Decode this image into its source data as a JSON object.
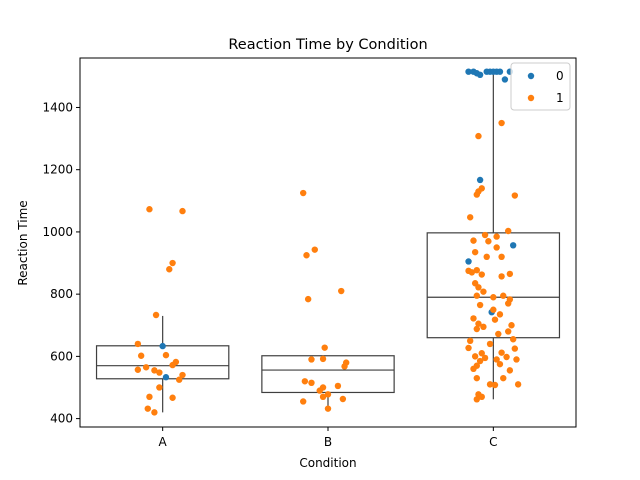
{
  "chart_data": {
    "type": "scatter",
    "title": "Reaction Time by Condition",
    "xlabel": "Condition",
    "ylabel": "Reaction Time",
    "categories": [
      "A",
      "B",
      "C"
    ],
    "ylim": [
      373,
      1559
    ],
    "yticks": [
      400,
      600,
      800,
      1000,
      1200,
      1400
    ],
    "grid": false,
    "legend_position": "top-right",
    "boxes": [
      {
        "category": "A",
        "q1": 528,
        "median": 570,
        "q3": 634,
        "whisker_low": 420,
        "whisker_high": 730
      },
      {
        "category": "B",
        "q1": 484,
        "median": 556,
        "q3": 602,
        "whisker_low": 432,
        "whisker_high": 602
      },
      {
        "category": "C",
        "q1": 660,
        "median": 790,
        "q3": 997,
        "whisker_low": 462,
        "whisker_high": 1515
      }
    ],
    "series": [
      {
        "name": "0",
        "color": "#1f77b4",
        "points": [
          [
            "A",
            0.0,
            633
          ],
          [
            "A",
            0.02,
            533
          ],
          [
            "C",
            -0.15,
            1515
          ],
          [
            "C",
            -0.12,
            1515
          ],
          [
            "C",
            -0.1,
            1510
          ],
          [
            "C",
            -0.08,
            1505
          ],
          [
            "C",
            -0.04,
            1515
          ],
          [
            "C",
            -0.02,
            1515
          ],
          [
            "C",
            0.0,
            1515
          ],
          [
            "C",
            0.02,
            1515
          ],
          [
            "C",
            0.04,
            1515
          ],
          [
            "C",
            0.07,
            1490
          ],
          [
            "C",
            0.1,
            1515
          ],
          [
            "C",
            -0.08,
            1167
          ],
          [
            "C",
            0.12,
            957
          ],
          [
            "C",
            -0.15,
            905
          ],
          [
            "C",
            -0.01,
            742
          ]
        ]
      },
      {
        "name": "1",
        "color": "#ff7f0e",
        "points": [
          [
            "A",
            -0.08,
            1073
          ],
          [
            "A",
            0.12,
            1067
          ],
          [
            "A",
            0.06,
            900
          ],
          [
            "A",
            0.04,
            880
          ],
          [
            "A",
            -0.04,
            733
          ],
          [
            "A",
            -0.15,
            640
          ],
          [
            "A",
            -0.13,
            602
          ],
          [
            "A",
            0.02,
            604
          ],
          [
            "A",
            0.08,
            582
          ],
          [
            "A",
            0.06,
            572
          ],
          [
            "A",
            -0.1,
            565
          ],
          [
            "A",
            -0.05,
            555
          ],
          [
            "A",
            -0.15,
            557
          ],
          [
            "A",
            0.12,
            540
          ],
          [
            "A",
            -0.02,
            548
          ],
          [
            "A",
            0.1,
            525
          ],
          [
            "A",
            -0.02,
            500
          ],
          [
            "A",
            -0.08,
            470
          ],
          [
            "A",
            0.06,
            467
          ],
          [
            "A",
            -0.09,
            432
          ],
          [
            "A",
            -0.05,
            420
          ],
          [
            "B",
            -0.15,
            1125
          ],
          [
            "B",
            -0.08,
            943
          ],
          [
            "B",
            -0.13,
            925
          ],
          [
            "B",
            0.08,
            810
          ],
          [
            "B",
            -0.12,
            784
          ],
          [
            "B",
            -0.02,
            628
          ],
          [
            "B",
            -0.1,
            590
          ],
          [
            "B",
            -0.03,
            592
          ],
          [
            "B",
            0.11,
            580
          ],
          [
            "B",
            0.1,
            568
          ],
          [
            "B",
            -0.14,
            520
          ],
          [
            "B",
            -0.1,
            515
          ],
          [
            "B",
            0.06,
            505
          ],
          [
            "B",
            -0.03,
            500
          ],
          [
            "B",
            -0.05,
            490
          ],
          [
            "B",
            0.0,
            478
          ],
          [
            "B",
            -0.03,
            470
          ],
          [
            "B",
            0.09,
            463
          ],
          [
            "B",
            -0.15,
            455
          ],
          [
            "B",
            0.0,
            432
          ],
          [
            "C",
            0.05,
            1350
          ],
          [
            "C",
            -0.09,
            1308
          ],
          [
            "C",
            -0.07,
            1140
          ],
          [
            "C",
            -0.1,
            1120
          ],
          [
            "C",
            0.13,
            1117
          ],
          [
            "C",
            -0.09,
            1130
          ],
          [
            "C",
            -0.14,
            1047
          ],
          [
            "C",
            -0.05,
            990
          ],
          [
            "C",
            0.09,
            1003
          ],
          [
            "C",
            -0.12,
            972
          ],
          [
            "C",
            0.02,
            985
          ],
          [
            "C",
            -0.03,
            970
          ],
          [
            "C",
            -0.11,
            935
          ],
          [
            "C",
            0.02,
            950
          ],
          [
            "C",
            -0.04,
            920
          ],
          [
            "C",
            0.05,
            920
          ],
          [
            "C",
            -0.15,
            875
          ],
          [
            "C",
            -0.13,
            870
          ],
          [
            "C",
            -0.1,
            877
          ],
          [
            "C",
            -0.07,
            863
          ],
          [
            "C",
            0.05,
            857
          ],
          [
            "C",
            0.1,
            865
          ],
          [
            "C",
            -0.11,
            835
          ],
          [
            "C",
            -0.09,
            822
          ],
          [
            "C",
            -0.06,
            808
          ],
          [
            "C",
            -0.1,
            795
          ],
          [
            "C",
            0.0,
            790
          ],
          [
            "C",
            0.06,
            795
          ],
          [
            "C",
            0.1,
            783
          ],
          [
            "C",
            -0.08,
            765
          ],
          [
            "C",
            0.09,
            770
          ],
          [
            "C",
            0.0,
            750
          ],
          [
            "C",
            -0.12,
            722
          ],
          [
            "C",
            0.04,
            735
          ],
          [
            "C",
            -0.09,
            705
          ],
          [
            "C",
            0.01,
            718
          ],
          [
            "C",
            -0.06,
            695
          ],
          [
            "C",
            0.11,
            700
          ],
          [
            "C",
            -0.1,
            688
          ],
          [
            "C",
            0.09,
            680
          ],
          [
            "C",
            0.03,
            672
          ],
          [
            "C",
            -0.14,
            650
          ],
          [
            "C",
            0.12,
            655
          ],
          [
            "C",
            -0.02,
            640
          ],
          [
            "C",
            -0.15,
            627
          ],
          [
            "C",
            0.13,
            625
          ],
          [
            "C",
            -0.07,
            610
          ],
          [
            "C",
            0.05,
            612
          ],
          [
            "C",
            -0.11,
            600
          ],
          [
            "C",
            -0.05,
            595
          ],
          [
            "C",
            -0.08,
            585
          ],
          [
            "C",
            0.02,
            590
          ],
          [
            "C",
            0.08,
            598
          ],
          [
            "C",
            0.14,
            590
          ],
          [
            "C",
            -0.1,
            570
          ],
          [
            "C",
            0.04,
            575
          ],
          [
            "C",
            -0.12,
            560
          ],
          [
            "C",
            0.1,
            555
          ],
          [
            "C",
            -0.1,
            530
          ],
          [
            "C",
            0.06,
            530
          ],
          [
            "C",
            -0.02,
            510
          ],
          [
            "C",
            0.01,
            508
          ],
          [
            "C",
            0.15,
            510
          ],
          [
            "C",
            -0.09,
            478
          ],
          [
            "C",
            -0.07,
            470
          ],
          [
            "C",
            -0.1,
            462
          ]
        ]
      }
    ]
  }
}
